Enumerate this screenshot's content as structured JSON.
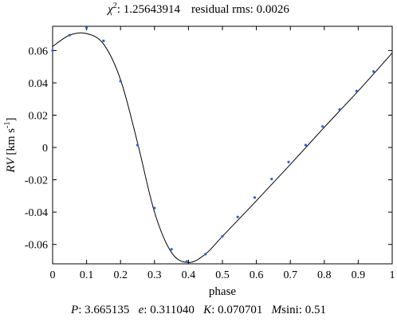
{
  "header": {
    "chi_symbol": "χ",
    "chi_sup": "2",
    "chi_value": "1.25643914",
    "rms_label": "residual rms: 0.0026"
  },
  "footer": {
    "p_label": "P",
    "p_value": "3.665135",
    "e_label": "e",
    "e_value": "0.311040",
    "k_label": "K",
    "k_value": "0.070701",
    "m_label": "M",
    "m_suffix": "sini",
    "m_value": "0.51"
  },
  "chart_data": {
    "type": "scatter",
    "xlabel": "phase",
    "ylabel_main": "RV",
    "ylabel_unit": "[km s",
    "ylabel_sup": "-1",
    "ylabel_close": "]",
    "xlim": [
      0,
      1
    ],
    "ylim": [
      -0.072,
      0.075
    ],
    "x_ticks": [
      0,
      0.1,
      0.2,
      0.3,
      0.4,
      0.5,
      0.6,
      0.7,
      0.8,
      0.9,
      1
    ],
    "x_tick_labels": [
      "0",
      "0.1",
      "0.2",
      "0.3",
      "0.4",
      "0.5",
      "0.6",
      "0.7",
      "0.8",
      "0.9",
      "1"
    ],
    "y_ticks": [
      -0.06,
      -0.04,
      -0.02,
      0,
      0.02,
      0.04,
      0.06
    ],
    "y_tick_labels": [
      "-0.06",
      "-0.04",
      "-0.02",
      "0",
      "0.02",
      "0.04",
      "0.06"
    ],
    "grid": false,
    "points": {
      "x": [
        0.0,
        0.05,
        0.1,
        0.15,
        0.2,
        0.25,
        0.3,
        0.35,
        0.395,
        0.45,
        0.5,
        0.545,
        0.595,
        0.645,
        0.695,
        0.745,
        0.795,
        0.845,
        0.895,
        0.945
      ],
      "y": [
        0.06,
        0.0695,
        0.074,
        0.066,
        0.041,
        0.0015,
        -0.0375,
        -0.063,
        -0.0705,
        -0.066,
        -0.055,
        -0.043,
        -0.031,
        -0.0195,
        -0.009,
        0.0015,
        0.013,
        0.0235,
        0.035,
        0.047
      ],
      "color": "#2b5fd9"
    },
    "fit_curve": {
      "x": [
        0,
        0.05,
        0.1,
        0.15,
        0.2,
        0.25,
        0.3,
        0.35,
        0.4,
        0.45,
        0.5,
        0.6,
        0.7,
        0.8,
        0.9,
        1.0
      ],
      "y": [
        0.0625,
        0.0695,
        0.0705,
        0.064,
        0.042,
        0.003,
        -0.04,
        -0.065,
        -0.0712,
        -0.066,
        -0.055,
        -0.033,
        -0.0105,
        0.0125,
        0.035,
        0.0585
      ],
      "color": "#000000"
    }
  }
}
